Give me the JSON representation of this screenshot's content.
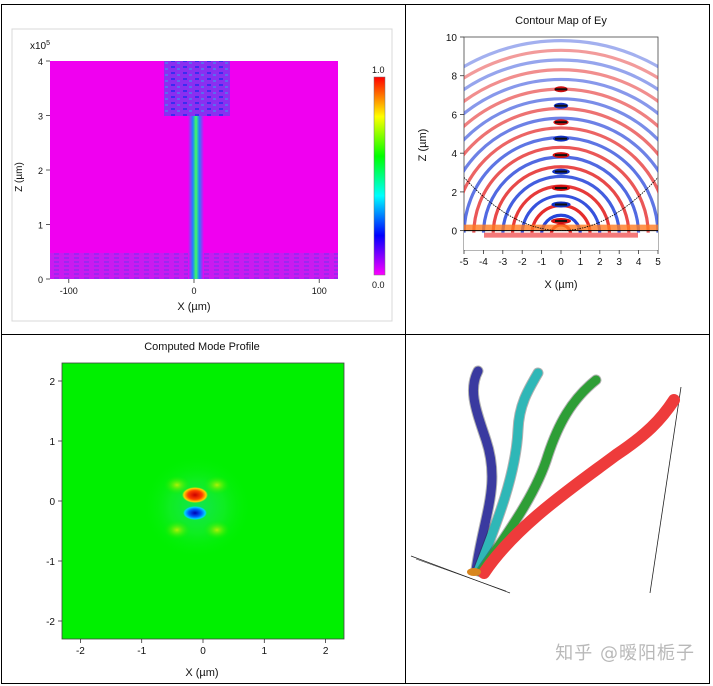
{
  "chart_data": [
    {
      "type": "heatmap",
      "title": "",
      "xlabel": "X (µm)",
      "ylabel": "Z (µm)",
      "x_ticks": [
        "-100",
        "0",
        "100"
      ],
      "y_ticks": [
        "0",
        "1",
        "2",
        "3",
        "4"
      ],
      "y_multiplier": "x10",
      "y_multiplier_exp": "5",
      "xlim": [
        -115,
        115
      ],
      "ylim": [
        0,
        4
      ],
      "colorbar_max": "1.0",
      "colorbar_min": "0.0",
      "background_color": "#f000f0"
    },
    {
      "type": "heatmap",
      "title": "Contour Map of Ey",
      "xlabel": "X (µm)",
      "ylabel": "Z (µm)",
      "x_ticks": [
        "-5",
        "-4",
        "-3",
        "-2",
        "-1",
        "0",
        "1",
        "2",
        "3",
        "4",
        "5"
      ],
      "y_ticks": [
        "0",
        "2",
        "4",
        "6",
        "8",
        "10"
      ],
      "xlim": [
        -5,
        5
      ],
      "ylim": [
        -1,
        10
      ]
    },
    {
      "type": "heatmap",
      "title": "Computed Mode Profile",
      "xlabel": "X (µm)",
      "ylabel": "",
      "x_ticks": [
        "-2",
        "-1",
        "0",
        "1",
        "2"
      ],
      "y_ticks": [
        "-2",
        "-1",
        "0",
        "1",
        "2"
      ],
      "xlim": [
        -2.3,
        2.3
      ],
      "ylim": [
        -2.3,
        2.3
      ],
      "background_color": "#00f000"
    }
  ],
  "render3d": {
    "tube_colors": [
      "#3a3aa0",
      "#2fb7b7",
      "#2e9e36",
      "#ee3b3b"
    ]
  },
  "watermark": "知乎 @暧阳栀子"
}
